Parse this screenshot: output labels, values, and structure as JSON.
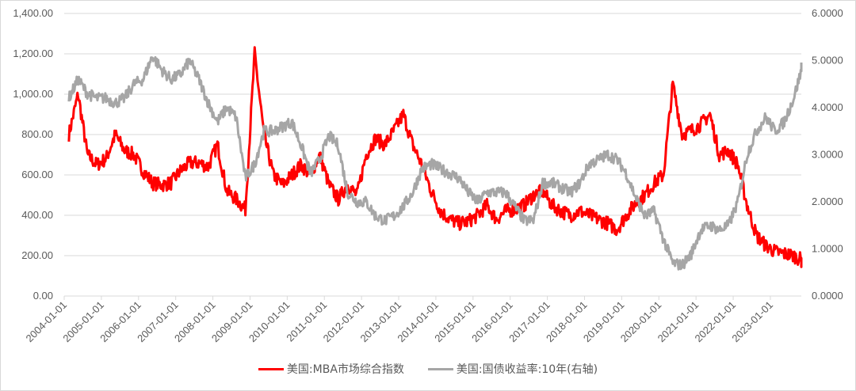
{
  "chart_data": {
    "type": "line",
    "title": "",
    "x_ticks": [
      "2004-01-01",
      "2005-01-01",
      "2006-01-01",
      "2007-01-01",
      "2008-01-01",
      "2009-01-01",
      "2010-01-01",
      "2011-01-01",
      "2012-01-01",
      "2013-01-01",
      "2014-01-01",
      "2015-01-01",
      "2016-01-01",
      "2017-01-01",
      "2018-01-01",
      "2019-01-01",
      "2020-01-01",
      "2021-01-01",
      "2022-01-01",
      "2023-01-01"
    ],
    "x_range": [
      "2004-01-01",
      "2023-10-31"
    ],
    "left_axis": {
      "range": [
        0,
        1400
      ],
      "ticks": [
        "0.00",
        "200.00",
        "400.00",
        "600.00",
        "800.00",
        "1,000.00",
        "1,200.00",
        "1,400.00"
      ]
    },
    "right_axis": {
      "range": [
        0,
        6
      ],
      "ticks": [
        "0.0000",
        "1.0000",
        "2.0000",
        "3.0000",
        "4.0000",
        "5.0000",
        "6.0000"
      ]
    },
    "grid": true,
    "legend_position": "bottom",
    "x_quarters": "quarterly from 2004-Q1 to 2023-Q4",
    "series": [
      {
        "name": "美国:MBA市场综合指数",
        "axis": "left",
        "color": "#ff0000",
        "values": [
          800,
          1000,
          700,
          650,
          680,
          800,
          720,
          700,
          620,
          560,
          550,
          560,
          620,
          660,
          660,
          640,
          750,
          520,
          480,
          430,
          1200,
          800,
          600,
          550,
          600,
          650,
          600,
          700,
          550,
          480,
          550,
          500,
          700,
          780,
          750,
          820,
          900,
          750,
          650,
          520,
          420,
          380,
          360,
          370,
          400,
          450,
          380,
          420,
          430,
          450,
          500,
          520,
          450,
          420,
          400,
          420,
          400,
          380,
          360,
          330,
          400,
          460,
          500,
          560,
          600,
          1050,
          800,
          820,
          850,
          900,
          700,
          720,
          650,
          450,
          300,
          250,
          220,
          210,
          200,
          175
        ]
      },
      {
        "name": "美国:国债收益率:10年(右轴)",
        "axis": "right",
        "color": "#a6a6a6",
        "values": [
          4.2,
          4.6,
          4.3,
          4.2,
          4.2,
          4.1,
          4.2,
          4.5,
          4.6,
          5.1,
          4.8,
          4.6,
          4.7,
          5.0,
          4.6,
          4.1,
          3.7,
          4.0,
          3.8,
          2.5,
          2.8,
          3.5,
          3.5,
          3.6,
          3.7,
          3.2,
          2.6,
          2.9,
          3.4,
          3.2,
          2.2,
          2.0,
          2.0,
          1.7,
          1.6,
          1.7,
          1.9,
          2.2,
          2.7,
          2.8,
          2.7,
          2.6,
          2.5,
          2.2,
          2.0,
          2.2,
          2.2,
          2.2,
          1.9,
          1.6,
          1.6,
          2.4,
          2.4,
          2.3,
          2.2,
          2.4,
          2.8,
          2.9,
          3.0,
          2.9,
          2.6,
          2.1,
          1.7,
          1.8,
          1.2,
          0.7,
          0.65,
          0.9,
          1.4,
          1.5,
          1.4,
          1.5,
          2.0,
          3.0,
          3.5,
          3.8,
          3.5,
          3.7,
          4.2,
          4.9
        ]
      }
    ]
  }
}
